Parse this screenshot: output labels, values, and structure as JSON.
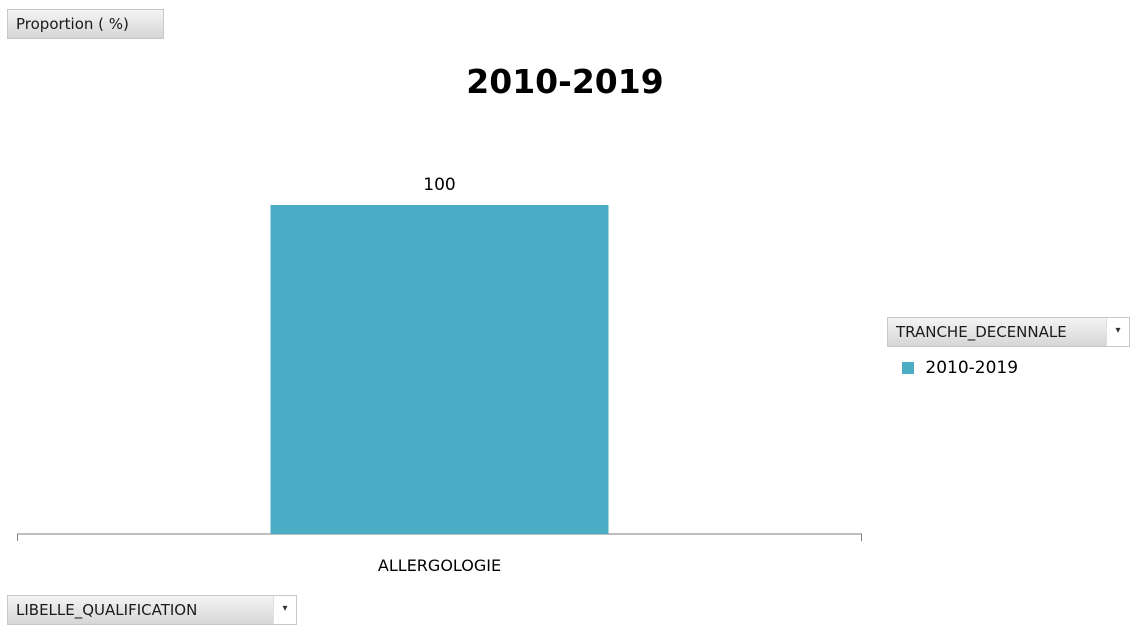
{
  "page_field": {
    "label": "Proportion ( %)"
  },
  "row_field": {
    "label": "LIBELLE_QUALIFICATION"
  },
  "legend_field": {
    "label": "TRANCHE_DECENNALE"
  },
  "colors": {
    "series": "#4bacc6",
    "axis": "#7f7f7f"
  },
  "chart_data": {
    "type": "bar",
    "title": "2010-2019",
    "categories": [
      "ALLERGOLOGIE"
    ],
    "series": [
      {
        "name": "2010-2019",
        "values": [
          100
        ]
      }
    ],
    "data_labels": [
      "100"
    ],
    "ylim": [
      0,
      100
    ],
    "grid": false,
    "legend_position": "right"
  }
}
